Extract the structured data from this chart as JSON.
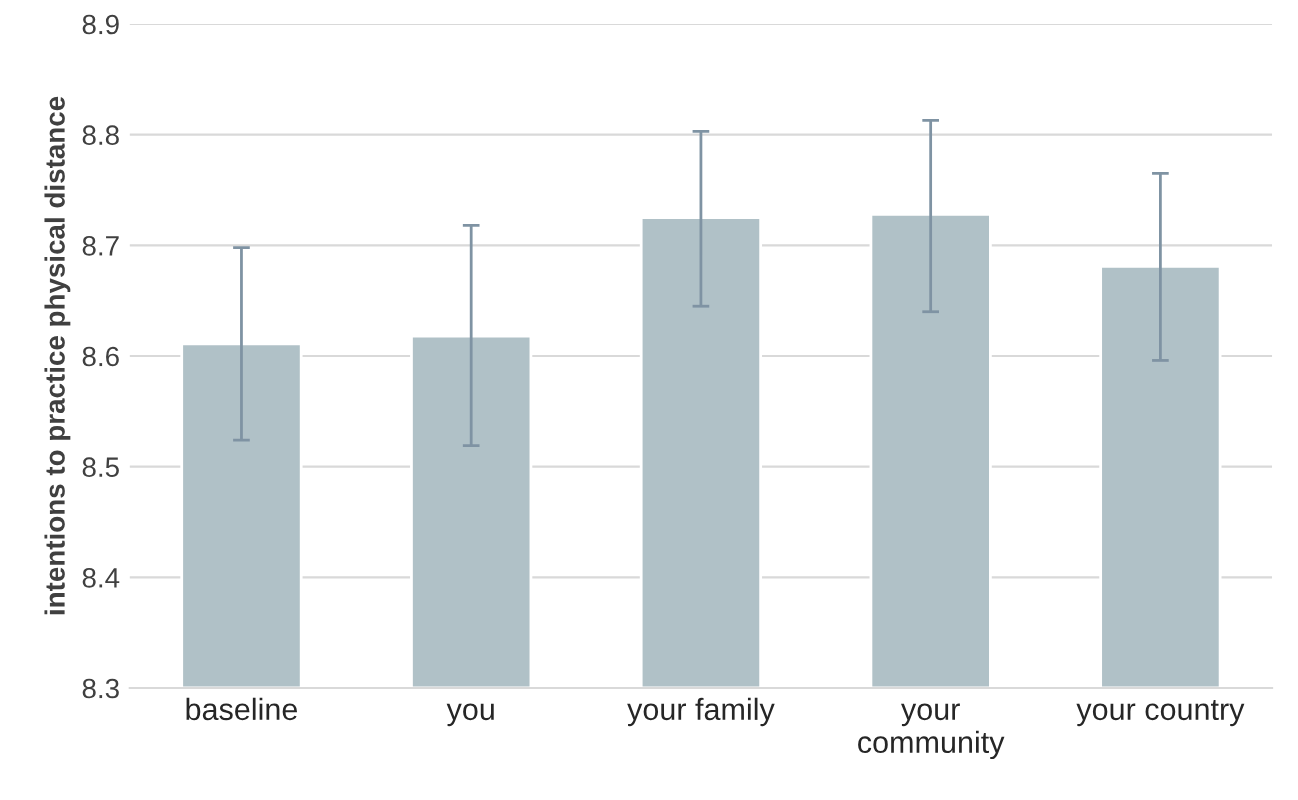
{
  "chart_data": {
    "type": "bar",
    "ylabel": "intentions to practice physical distance",
    "categories": [
      "baseline",
      "you",
      "your family",
      "your community",
      "your country"
    ],
    "values": [
      8.611,
      8.618,
      8.725,
      8.728,
      8.681
    ],
    "errors": [
      [
        8.524,
        8.698
      ],
      [
        8.519,
        8.718
      ],
      [
        8.645,
        8.803
      ],
      [
        8.64,
        8.813
      ],
      [
        8.596,
        8.765
      ]
    ],
    "color": "#b0c1c7",
    "ylim": [
      8.3,
      8.9
    ],
    "yticks": [
      8.3,
      8.4,
      8.5,
      8.6,
      8.7,
      8.8,
      8.9
    ],
    "grid": "y"
  }
}
